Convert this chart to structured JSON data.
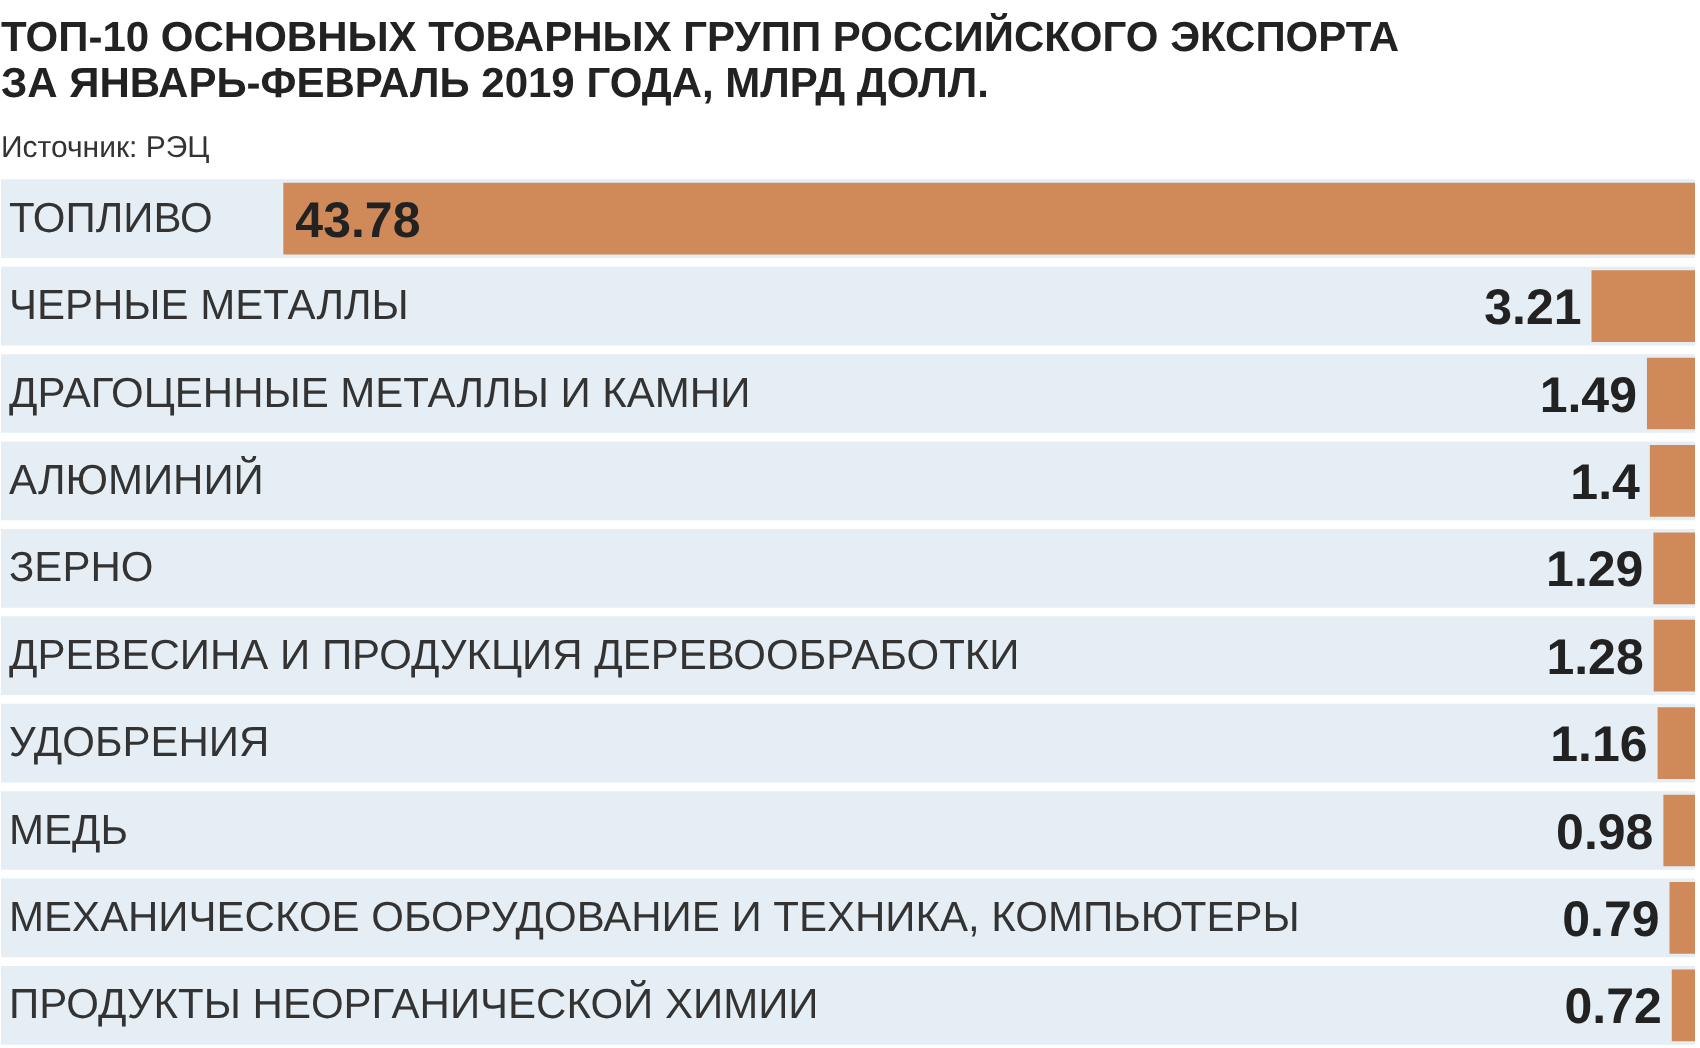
{
  "chart_data": {
    "type": "bar",
    "orientation": "horizontal",
    "title": "ТОП-10 ОСНОВНЫХ ТОВАРНЫХ ГРУПП РОССИЙСКОГО ЭКСПОРТА\nЗА ЯНВАРЬ-ФЕВРАЛЬ 2019 ГОДА, МЛРД ДОЛЛ.",
    "annotations": [
      "Источник: РЭЦ"
    ],
    "categories": [
      "ТОПЛИВО",
      "ЧЕРНЫЕ МЕТАЛЛЫ",
      "ДРАГОЦЕННЫЕ МЕТАЛЛЫ И КАМНИ",
      "АЛЮМИНИЙ",
      "ЗЕРНО",
      "ДРЕВЕСИНА И ПРОДУКЦИЯ ДЕРЕВООБРАБОТКИ",
      "УДОБРЕНИЯ",
      "МЕДЬ",
      "МЕХАНИЧЕСКОЕ ОБОРУДОВАНИЕ И ТЕХНИКА, КОМПЬЮТЕРЫ",
      "ПРОДУКТЫ НЕОРГАНИЧЕСКОЙ ХИМИИ"
    ],
    "values": [
      43.78,
      3.21,
      1.49,
      1.4,
      1.29,
      1.28,
      1.16,
      0.98,
      0.79,
      0.72
    ],
    "color": "#d08a5a",
    "data_labels": true
  }
}
